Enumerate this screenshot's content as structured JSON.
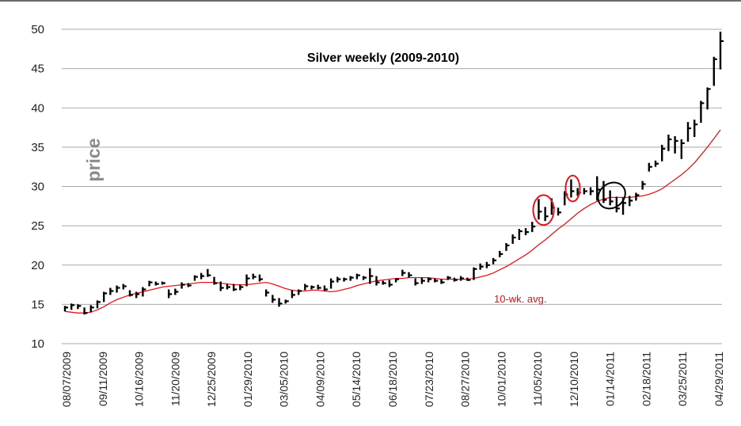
{
  "chart_data": {
    "type": "bar",
    "subtype": "ohlc-weekly",
    "title": "Silver weekly  (2009-2010)",
    "ylabel": "price",
    "xlabel": "",
    "ylim": [
      10,
      50
    ],
    "yticks": [
      10,
      15,
      20,
      25,
      30,
      35,
      40,
      45,
      50
    ],
    "grid": "horizontal",
    "legend": "none",
    "x_tick_labels": [
      "08/07/2009",
      "09/11/2009",
      "10/16/2009",
      "11/20/2009",
      "12/25/2009",
      "01/29/2010",
      "03/05/2010",
      "04/09/2010",
      "05/14/2010",
      "06/18/2010",
      "07/23/2010",
      "08/27/2010",
      "10/01/2010",
      "11/05/2010",
      "12/10/2010",
      "01/14/2011",
      "02/18/2011",
      "03/25/2011",
      "04/29/2011"
    ],
    "series": [
      {
        "values": [
          [
            14.8,
            14.1,
            14.6
          ],
          [
            15.1,
            14.3,
            14.9
          ],
          [
            15.0,
            14.4,
            14.8
          ],
          [
            14.6,
            13.7,
            13.9
          ],
          [
            14.9,
            14.0,
            14.6
          ],
          [
            15.5,
            14.5,
            15.3
          ],
          [
            16.6,
            15.3,
            16.4
          ],
          [
            17.1,
            16.2,
            16.7
          ],
          [
            17.4,
            16.5,
            17.1
          ],
          [
            17.6,
            16.9,
            17.3
          ],
          [
            16.8,
            16.0,
            16.2
          ],
          [
            16.6,
            15.8,
            16.3
          ],
          [
            17.2,
            16.0,
            16.9
          ],
          [
            18.0,
            17.3,
            17.8
          ],
          [
            17.9,
            17.4,
            17.6
          ],
          [
            17.9,
            17.5,
            17.7
          ],
          [
            16.9,
            15.8,
            16.3
          ],
          [
            17.0,
            16.2,
            16.6
          ],
          [
            17.8,
            17.0,
            17.5
          ],
          [
            17.7,
            17.2,
            17.4
          ],
          [
            18.7,
            18.0,
            18.5
          ],
          [
            19.0,
            18.2,
            18.6
          ],
          [
            19.5,
            18.5,
            18.7
          ],
          [
            18.5,
            17.5,
            17.7
          ],
          [
            17.9,
            16.7,
            17.1
          ],
          [
            17.6,
            16.9,
            17.2
          ],
          [
            17.6,
            16.7,
            16.9
          ],
          [
            17.5,
            16.8,
            17.2
          ],
          [
            18.8,
            17.3,
            18.3
          ],
          [
            18.9,
            18.2,
            18.5
          ],
          [
            18.8,
            17.9,
            18.2
          ],
          [
            16.9,
            16.0,
            16.5
          ],
          [
            16.2,
            15.2,
            15.6
          ],
          [
            15.8,
            14.7,
            15.1
          ],
          [
            15.6,
            15.1,
            15.4
          ],
          [
            16.8,
            15.8,
            16.2
          ],
          [
            16.9,
            16.2,
            16.7
          ],
          [
            17.6,
            16.8,
            17.3
          ],
          [
            17.4,
            16.9,
            17.2
          ],
          [
            17.5,
            16.9,
            17.1
          ],
          [
            17.4,
            16.7,
            16.9
          ],
          [
            18.3,
            17.0,
            17.9
          ],
          [
            18.5,
            17.8,
            18.2
          ],
          [
            18.4,
            17.9,
            18.2
          ],
          [
            18.6,
            18.0,
            18.4
          ],
          [
            18.9,
            18.2,
            18.7
          ],
          [
            18.6,
            18.1,
            18.4
          ],
          [
            19.6,
            17.6,
            18.6
          ],
          [
            18.6,
            17.4,
            17.8
          ],
          [
            18.0,
            17.5,
            17.7
          ],
          [
            18.1,
            17.2,
            17.5
          ],
          [
            18.3,
            17.8,
            18.2
          ],
          [
            19.4,
            18.6,
            19.0
          ],
          [
            19.1,
            18.4,
            18.7
          ],
          [
            18.3,
            17.4,
            17.7
          ],
          [
            18.4,
            17.6,
            18.0
          ],
          [
            18.4,
            17.8,
            18.2
          ],
          [
            18.3,
            17.8,
            18.0
          ],
          [
            18.2,
            17.6,
            17.8
          ],
          [
            18.6,
            18.1,
            18.4
          ],
          [
            18.4,
            17.9,
            18.1
          ],
          [
            18.6,
            18.0,
            18.3
          ],
          [
            18.4,
            18.0,
            18.1
          ],
          [
            19.7,
            18.1,
            19.5
          ],
          [
            20.2,
            19.4,
            19.8
          ],
          [
            20.4,
            19.6,
            20.0
          ],
          [
            20.9,
            20.1,
            20.6
          ],
          [
            21.8,
            21.0,
            21.4
          ],
          [
            22.8,
            21.8,
            22.5
          ],
          [
            23.9,
            22.7,
            23.5
          ],
          [
            24.6,
            23.2,
            24.3
          ],
          [
            24.7,
            23.8,
            24.2
          ],
          [
            25.5,
            24.2,
            24.9
          ],
          [
            28.4,
            25.8,
            26.8
          ],
          [
            27.4,
            25.6,
            26.2
          ],
          [
            28.5,
            26.4,
            27.3
          ],
          [
            27.3,
            26.3,
            26.7
          ],
          [
            29.4,
            27.6,
            29.0
          ],
          [
            30.9,
            28.6,
            29.4
          ],
          [
            29.8,
            28.8,
            29.2
          ],
          [
            29.8,
            29.0,
            29.4
          ],
          [
            29.9,
            28.9,
            29.4
          ],
          [
            31.3,
            28.2,
            29.6
          ],
          [
            30.7,
            27.9,
            28.3
          ],
          [
            29.5,
            27.6,
            28.1
          ],
          [
            28.7,
            26.7,
            27.2
          ],
          [
            28.6,
            26.4,
            27.9
          ],
          [
            28.8,
            27.5,
            28.2
          ],
          [
            29.2,
            28.2,
            28.9
          ],
          [
            30.7,
            29.6,
            30.3
          ],
          [
            33.0,
            31.9,
            32.5
          ],
          [
            33.3,
            32.5,
            32.9
          ],
          [
            35.3,
            33.2,
            34.8
          ],
          [
            36.6,
            34.5,
            36.0
          ],
          [
            36.4,
            34.2,
            35.8
          ],
          [
            36.0,
            33.5,
            35.5
          ],
          [
            38.2,
            35.7,
            37.4
          ],
          [
            38.5,
            36.3,
            37.9
          ],
          [
            40.9,
            38.1,
            40.6
          ],
          [
            42.6,
            39.8,
            42.4
          ],
          [
            46.5,
            42.8,
            46.2
          ],
          [
            49.7,
            44.9,
            48.5
          ]
        ]
      },
      {
        "name": "10-wk. avg.",
        "values": [
          14.1,
          14.0,
          13.9,
          13.9,
          14.0,
          14.3,
          14.7,
          15.2,
          15.6,
          15.9,
          16.2,
          16.4,
          16.6,
          16.8,
          17.0,
          17.2,
          17.3,
          17.4,
          17.5,
          17.6,
          17.7,
          17.8,
          17.8,
          17.8,
          17.7,
          17.6,
          17.5,
          17.5,
          17.5,
          17.6,
          17.7,
          17.8,
          17.6,
          17.3,
          17.0,
          16.8,
          16.7,
          16.7,
          16.8,
          16.8,
          16.7,
          16.6,
          16.7,
          16.9,
          17.1,
          17.4,
          17.6,
          17.8,
          18.0,
          18.1,
          18.2,
          18.3,
          18.3,
          18.4,
          18.4,
          18.4,
          18.4,
          18.3,
          18.2,
          18.2,
          18.2,
          18.2,
          18.2,
          18.3,
          18.5,
          18.7,
          19.0,
          19.4,
          19.8,
          20.3,
          20.8,
          21.3,
          21.9,
          22.6,
          23.2,
          23.9,
          24.6,
          25.2,
          25.9,
          26.6,
          27.2,
          27.7,
          28.1,
          28.4,
          28.6,
          28.6,
          28.6,
          28.6,
          28.7,
          28.8,
          29.0,
          29.3,
          29.7,
          30.3,
          30.9,
          31.5,
          32.2,
          33.0,
          34.0,
          35.0,
          36.1,
          37.2
        ]
      }
    ],
    "annotations": [
      {
        "text": "10-wk. avg."
      }
    ],
    "colors": {
      "bars": "#000000",
      "average": "#e8141b",
      "grid": "#a9a9a9",
      "circle_red": "#e8141b",
      "circle_black": "#000000"
    }
  }
}
